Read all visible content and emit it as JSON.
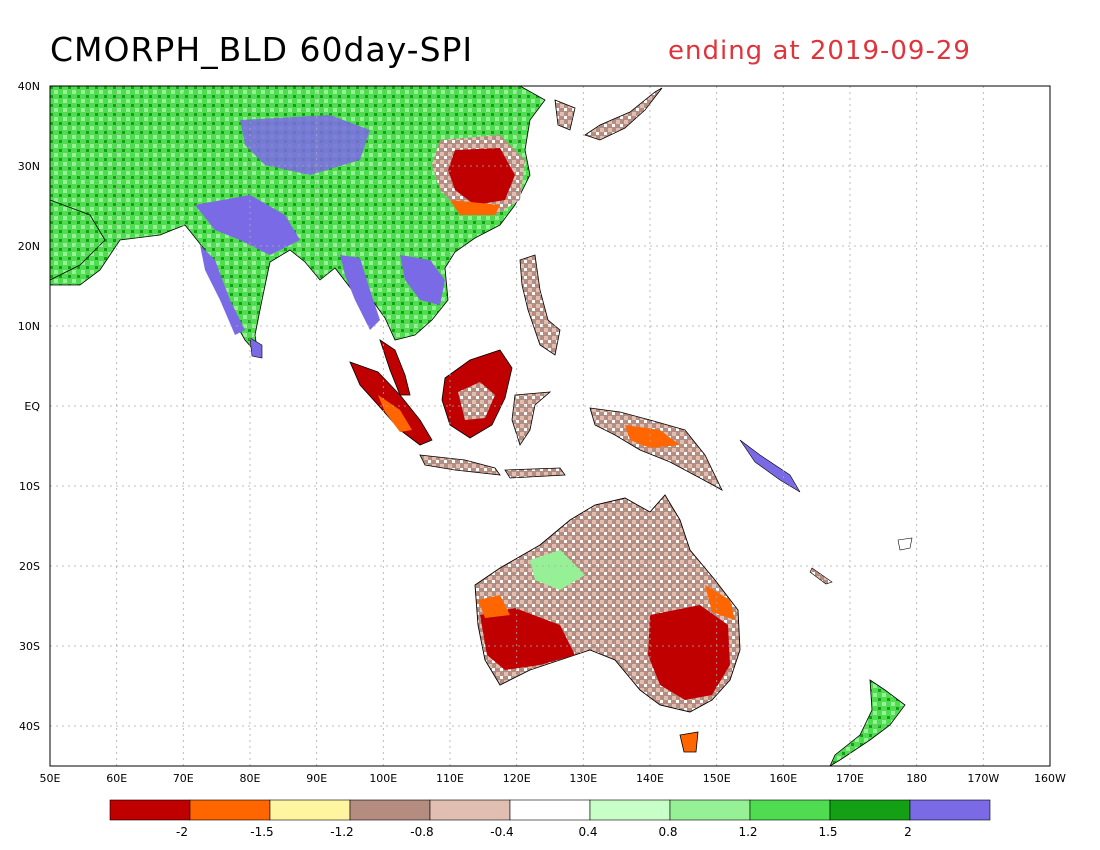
{
  "title": {
    "main": "CMORPH_BLD 60day-SPI",
    "date": "ending at 2019-09-29"
  },
  "axes": {
    "x_ticks": [
      "50E",
      "60E",
      "70E",
      "80E",
      "90E",
      "100E",
      "110E",
      "120E",
      "130E",
      "140E",
      "150E",
      "160E",
      "170E",
      "180",
      "170W",
      "160W"
    ],
    "y_ticks": [
      "40N",
      "30N",
      "20N",
      "10N",
      "EQ",
      "10S",
      "20S",
      "30S",
      "40S"
    ]
  },
  "colorbar": {
    "colors": [
      "#c00000",
      "#ff6600",
      "#fff5a0",
      "#b48c80",
      "#e0beb2",
      "#ffffff",
      "#c8ffc8",
      "#96f096",
      "#50dc50",
      "#14a014",
      "#7b6ae6"
    ],
    "labels": [
      "-2",
      "-1.5",
      "-1.2",
      "-0.8",
      "-0.4",
      "0.4",
      "0.8",
      "1.2",
      "1.5",
      "2"
    ]
  },
  "colors": {
    "date_text": "#e0343c",
    "land_outline": "#000000",
    "grid": "#aaaaaa"
  }
}
